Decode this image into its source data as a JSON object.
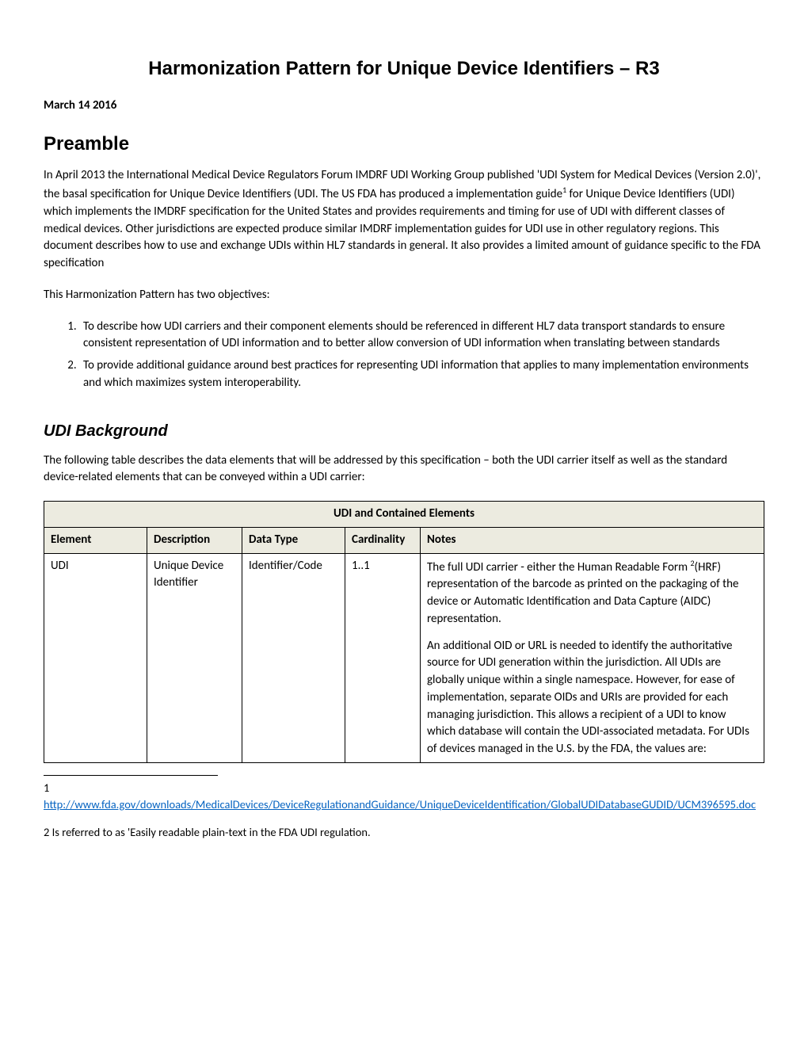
{
  "title": "Harmonization Pattern for Unique Device Identifiers – R3",
  "date": "March 14 2016",
  "preamble": {
    "heading": "Preamble",
    "p1": "In April 2013 the International Medical Device Regulators Forum IMDRF UDI Working Group published 'UDI System for Medical Devices (Version 2.0)', the basal specification for Unique Device Identifiers (UDI. The US FDA has produced a implementation guide",
    "p1b": " for Unique Device Identifiers (UDI) which implements the IMDRF specification for the United States and provides requirements and timing for use of UDI with different classes of medical devices. Other jurisdictions are expected produce similar IMDRF implementation guides for UDI use in other regulatory regions. This document describes how to use and exchange UDIs within HL7 standards in general.  It also provides a limited amount of guidance specific to the FDA specification",
    "p2": "This Harmonization Pattern has two objectives:",
    "obj1": "To describe how UDI carriers and their component elements should be referenced in different HL7 data transport standards to ensure consistent representation of UDI information and to better allow conversion of UDI information when translating between standards",
    "obj2": "To provide additional guidance around best practices for representing UDI information that applies to many implementation environments and which maximizes system interoperability."
  },
  "background": {
    "heading": "UDI Background",
    "intro": "The following table describes the data elements that will be addressed by this specification – both the UDI carrier itself as well as the standard device-related elements that can be conveyed within a UDI carrier:"
  },
  "table": {
    "title": "UDI and Contained Elements",
    "headers": {
      "c1": "Element",
      "c2": "Description",
      "c3": "Data Type",
      "c4": "Cardinality",
      "c5": "Notes"
    },
    "row1": {
      "element": "UDI",
      "description": "Unique Device Identifier",
      "datatype": "Identifier/Code",
      "cardinality": "1..1",
      "notes_a": "The full UDI carrier - either the Human Readable Form ",
      "notes_b": "(HRF) representation of the barcode as printed on the packaging of the device or Automatic Identification and Data Capture (AIDC) representation.",
      "notes_p2": "An additional OID or URL is needed to identify the authoritative source for UDI generation within the jurisdiction.  All UDIs are globally unique within a single namespace.  However, for ease of implementation, separate OIDs and URIs are provided for each managing jurisdiction.  This allows a recipient of a UDI to know which database will contain the UDI-associated metadata.  For UDIs of devices managed in the U.S. by the FDA, the values are:"
    }
  },
  "footnotes": {
    "f1_num": "1",
    "f1_url": "http://www.fda.gov/downloads/MedicalDevices/DeviceRegulationandGuidance/UniqueDeviceIdentification/GlobalUDIDatabaseGUDID/UCM396595.doc",
    "f2": "2 Is referred to as 'Easily readable plain-text in the FDA UDI regulation."
  }
}
